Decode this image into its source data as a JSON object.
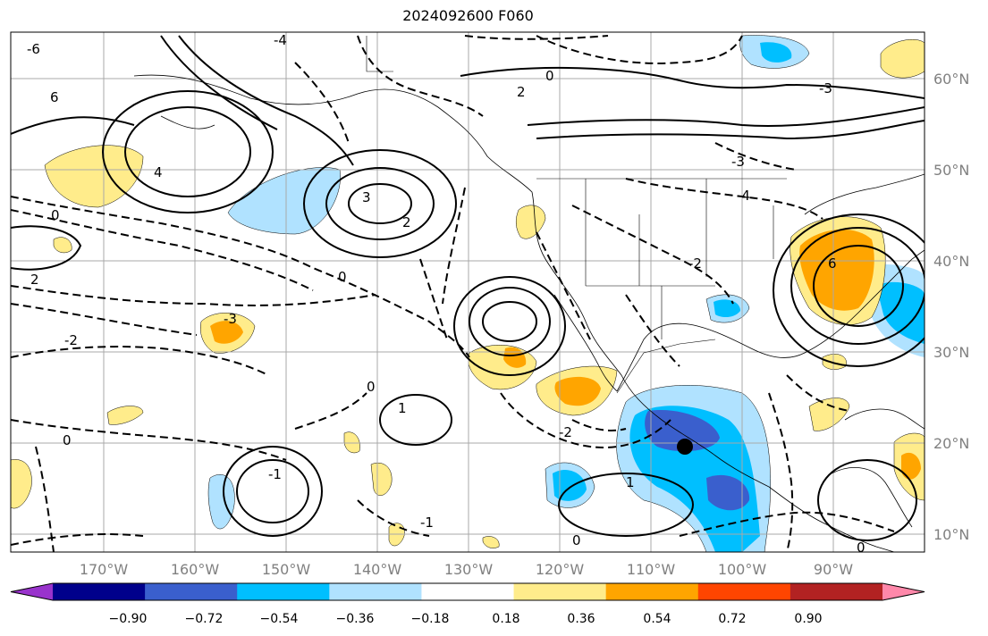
{
  "title": "2024092600 F060",
  "lon_labels": [
    "170°W",
    "160°W",
    "150°W",
    "140°W",
    "130°W",
    "120°W",
    "110°W",
    "100°W",
    "90°W"
  ],
  "lat_labels": [
    "60°N",
    "50°N",
    "40°N",
    "30°N",
    "20°N",
    "10°N"
  ],
  "colorbar": {
    "colors": [
      "#9933cc",
      "#00008b",
      "#3a5fcd",
      "#00bfff",
      "#b0e2ff",
      "#ffffff",
      "#ffec8b",
      "#ffa500",
      "#ff4500",
      "#b22222",
      "#ff88aa"
    ],
    "tick_labels": [
      "−0.90",
      "−0.72",
      "−0.54",
      "−0.36",
      "−0.18",
      "0.18",
      "0.36",
      "0.54",
      "0.72",
      "0.90"
    ]
  },
  "contour_labels": [
    "6",
    "4",
    "2",
    "0",
    "-1",
    "-2",
    "-3",
    "-4",
    "3",
    "1",
    "-6"
  ],
  "colors": {
    "coast": "#000000",
    "grid": "#a9a9a9",
    "contour": "#000000",
    "marker": "#000000"
  }
}
